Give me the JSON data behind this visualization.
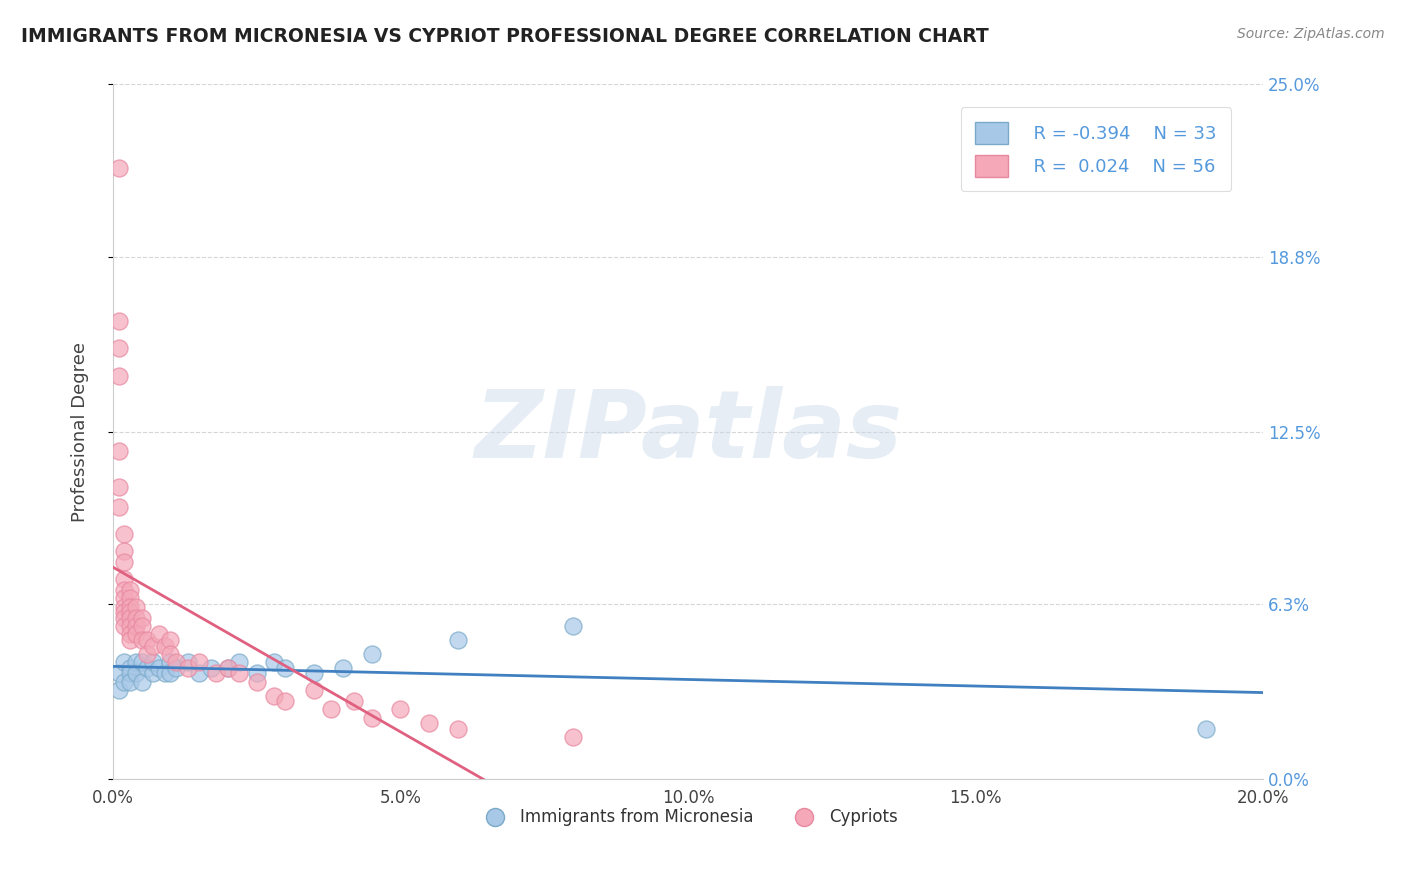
{
  "title": "IMMIGRANTS FROM MICRONESIA VS CYPRIOT PROFESSIONAL DEGREE CORRELATION CHART",
  "source": "Source: ZipAtlas.com",
  "xlabel_label": "Immigrants from Micronesia",
  "ylabel_label": "Professional Degree",
  "xlim": [
    0.0,
    0.2
  ],
  "ylim": [
    0.0,
    0.25
  ],
  "xtick_vals": [
    0.0,
    0.05,
    0.1,
    0.15,
    0.2
  ],
  "xtick_labels": [
    "0.0%",
    "5.0%",
    "10.0%",
    "15.0%",
    "20.0%"
  ],
  "ytick_vals_right": [
    0.0,
    0.063,
    0.125,
    0.188,
    0.25
  ],
  "ytick_labels_right": [
    "0.0%",
    "6.3%",
    "12.5%",
    "18.8%",
    "25.0%"
  ],
  "grid_color": "#cccccc",
  "background_color": "#ffffff",
  "watermark_text": "ZIPatlas",
  "blue_color": "#a8c8e8",
  "pink_color": "#f4a8b8",
  "blue_edge_color": "#7aaac8",
  "pink_edge_color": "#e888a0",
  "blue_line_color": "#4080c0",
  "pink_line_color": "#e06080",
  "legend_r_blue": "R = -0.394",
  "legend_n_blue": "N = 33",
  "legend_r_pink": "R =  0.024",
  "legend_n_pink": "N = 56",
  "blue_scatter_x": [
    0.001,
    0.001,
    0.002,
    0.002,
    0.003,
    0.003,
    0.003,
    0.004,
    0.004,
    0.005,
    0.005,
    0.006,
    0.007,
    0.007,
    0.008,
    0.009,
    0.01,
    0.01,
    0.011,
    0.013,
    0.015,
    0.017,
    0.02,
    0.022,
    0.025,
    0.028,
    0.03,
    0.035,
    0.04,
    0.045,
    0.06,
    0.08,
    0.19
  ],
  "blue_scatter_y": [
    0.038,
    0.032,
    0.042,
    0.035,
    0.04,
    0.038,
    0.035,
    0.042,
    0.038,
    0.042,
    0.035,
    0.04,
    0.038,
    0.042,
    0.04,
    0.038,
    0.042,
    0.038,
    0.04,
    0.042,
    0.038,
    0.04,
    0.04,
    0.042,
    0.038,
    0.042,
    0.04,
    0.038,
    0.04,
    0.045,
    0.05,
    0.055,
    0.018
  ],
  "pink_scatter_x": [
    0.001,
    0.001,
    0.001,
    0.001,
    0.001,
    0.001,
    0.001,
    0.002,
    0.002,
    0.002,
    0.002,
    0.002,
    0.002,
    0.002,
    0.002,
    0.002,
    0.002,
    0.003,
    0.003,
    0.003,
    0.003,
    0.003,
    0.003,
    0.003,
    0.003,
    0.004,
    0.004,
    0.004,
    0.004,
    0.005,
    0.005,
    0.005,
    0.006,
    0.006,
    0.007,
    0.008,
    0.009,
    0.01,
    0.01,
    0.011,
    0.013,
    0.015,
    0.018,
    0.02,
    0.022,
    0.025,
    0.028,
    0.03,
    0.035,
    0.038,
    0.042,
    0.045,
    0.05,
    0.055,
    0.06,
    0.08
  ],
  "pink_scatter_y": [
    0.22,
    0.165,
    0.155,
    0.145,
    0.118,
    0.105,
    0.098,
    0.088,
    0.082,
    0.078,
    0.072,
    0.068,
    0.065,
    0.062,
    0.06,
    0.058,
    0.055,
    0.068,
    0.065,
    0.062,
    0.06,
    0.058,
    0.055,
    0.052,
    0.05,
    0.062,
    0.058,
    0.055,
    0.052,
    0.058,
    0.055,
    0.05,
    0.05,
    0.045,
    0.048,
    0.052,
    0.048,
    0.05,
    0.045,
    0.042,
    0.04,
    0.042,
    0.038,
    0.04,
    0.038,
    0.035,
    0.03,
    0.028,
    0.032,
    0.025,
    0.028,
    0.022,
    0.025,
    0.02,
    0.018,
    0.015
  ]
}
